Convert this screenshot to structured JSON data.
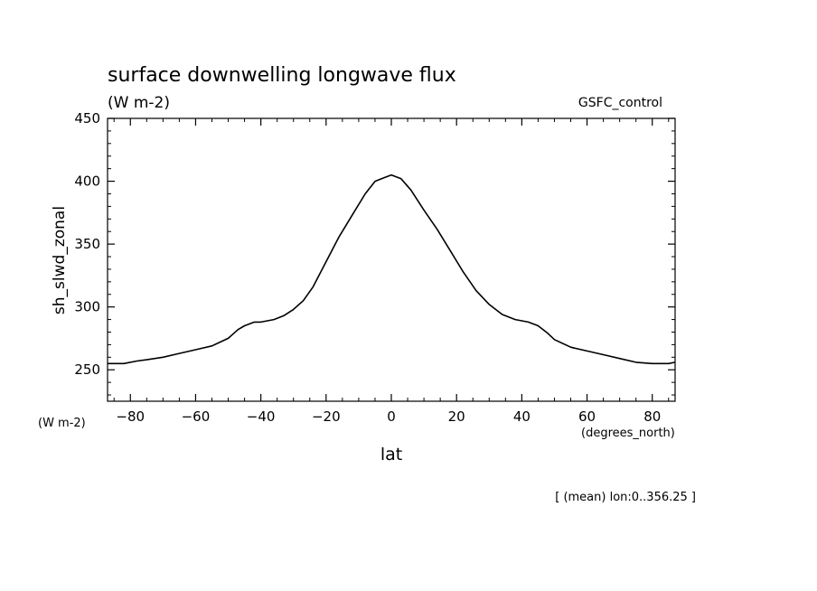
{
  "chart_data": {
    "type": "line",
    "title": "surface downwelling longwave flux",
    "units_label": "(W m-2)",
    "run_label": "GSFC_control",
    "ylabel": "sh_slwd_zonal",
    "xlabel": "lat",
    "x_units_label": "(degrees_north)",
    "y_units_corner_label": "(W m-2)",
    "footnote": "[ (mean) lon:0..356.25 ]",
    "xlim": [
      -87,
      87
    ],
    "ylim": [
      225,
      450
    ],
    "x_ticks": [
      -80,
      -60,
      -40,
      -20,
      0,
      20,
      40,
      60,
      80
    ],
    "x_tick_labels": [
      "−80",
      "−60",
      "−40",
      "−20",
      "0",
      "20",
      "40",
      "60",
      "80"
    ],
    "y_ticks": [
      250,
      300,
      350,
      400,
      450
    ],
    "y_tick_labels": [
      "250",
      "300",
      "350",
      "400",
      "450"
    ],
    "grid": false,
    "color": "#000000",
    "series": [
      {
        "x": [
          -87,
          -82,
          -78,
          -75,
          -70,
          -65,
          -60,
          -55,
          -50,
          -47,
          -45,
          -42,
          -40,
          -36,
          -33,
          -30,
          -27,
          -24,
          -20,
          -16,
          -12,
          -8,
          -5,
          -3,
          -1,
          0,
          1,
          3,
          6,
          10,
          14,
          18,
          22,
          26,
          30,
          34,
          38,
          42,
          45,
          48,
          50,
          55,
          60,
          65,
          70,
          75,
          80,
          85,
          87
        ],
        "y": [
          255,
          255,
          257,
          258,
          260,
          263,
          266,
          269,
          275,
          282,
          285,
          288,
          288,
          290,
          293,
          298,
          305,
          316,
          336,
          356,
          373,
          390,
          400,
          402,
          404,
          405,
          404,
          402,
          393,
          377,
          362,
          345,
          328,
          313,
          302,
          294,
          290,
          288,
          285,
          279,
          274,
          268,
          265,
          262,
          259,
          256,
          255,
          255,
          256
        ]
      }
    ]
  }
}
